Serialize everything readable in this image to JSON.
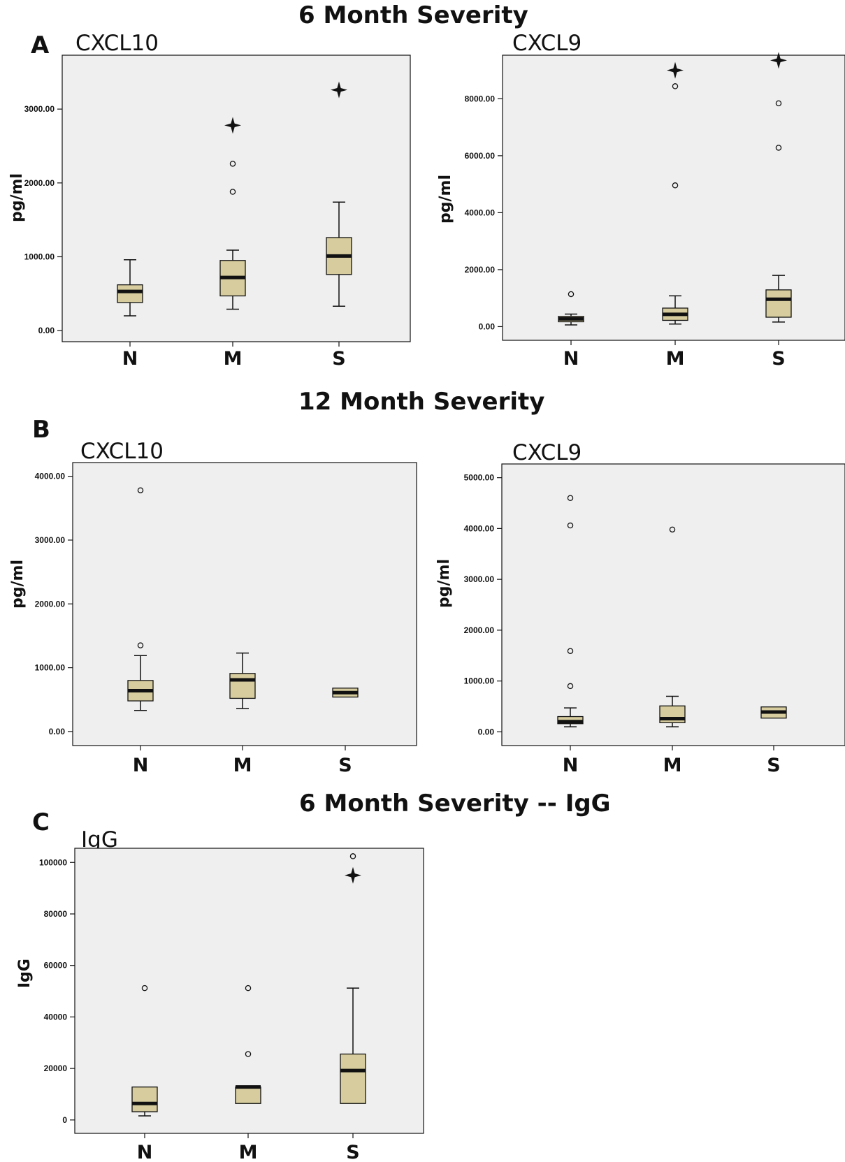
{
  "titles": {
    "six_month": "6 Month Severity",
    "twelve_month": "12 Month Severity",
    "six_month_igg": "6 Month Severity -- IgG"
  },
  "panels": {
    "a": "A",
    "b": "B",
    "c": "C"
  },
  "colors": {
    "box_fill": "#d6cc9d",
    "plot_bg": "#efefef",
    "line": "#111111"
  },
  "chart_data": [
    {
      "id": "a-cxcl10",
      "type": "box",
      "title": "CXCL10",
      "ylabel": "pg/ml",
      "categories": [
        "N",
        "M",
        "S"
      ],
      "ylim": [
        -150,
        3730
      ],
      "yticks": [
        0,
        1000,
        2000,
        3000
      ],
      "ytick_labels": [
        "0.00",
        "1000.00",
        "2000.00",
        "3000.00"
      ],
      "boxes": [
        {
          "category": "N",
          "whisker_low": 200,
          "q1": 380,
          "median": 530,
          "q3": 620,
          "whisker_high": 960,
          "outliers": [],
          "extremes": []
        },
        {
          "category": "M",
          "whisker_low": 290,
          "q1": 470,
          "median": 720,
          "q3": 950,
          "whisker_high": 1090,
          "outliers": [
            1880,
            2260
          ],
          "extremes": [
            2780
          ]
        },
        {
          "category": "S",
          "whisker_low": 330,
          "q1": 760,
          "median": 1010,
          "q3": 1260,
          "whisker_high": 1740,
          "outliers": [],
          "extremes": [
            3260
          ]
        }
      ]
    },
    {
      "id": "a-cxcl9",
      "type": "box",
      "title": "CXCL9",
      "ylabel": "pg/ml",
      "categories": [
        "N",
        "M",
        "S"
      ],
      "ylim": [
        -480,
        9530
      ],
      "yticks": [
        0,
        2000,
        4000,
        6000,
        8000
      ],
      "ytick_labels": [
        "0.00",
        "2000.00",
        "4000.00",
        "6000.00",
        "8000.00"
      ],
      "boxes": [
        {
          "category": "N",
          "whisker_low": 60,
          "q1": 170,
          "median": 270,
          "q3": 360,
          "whisker_high": 440,
          "outliers": [
            1140
          ],
          "extremes": []
        },
        {
          "category": "M",
          "whisker_low": 90,
          "q1": 220,
          "median": 430,
          "q3": 650,
          "whisker_high": 1080,
          "outliers": [
            4960,
            8440
          ],
          "extremes": [
            9000
          ]
        },
        {
          "category": "S",
          "whisker_low": 160,
          "q1": 330,
          "median": 960,
          "q3": 1290,
          "whisker_high": 1800,
          "outliers": [
            6280,
            7840
          ],
          "extremes": [
            9350
          ]
        }
      ]
    },
    {
      "id": "b-cxcl10",
      "type": "box",
      "title": "CXCL10",
      "ylabel": "pg/ml",
      "categories": [
        "N",
        "M",
        "S"
      ],
      "ylim": [
        -220,
        4215
      ],
      "yticks": [
        0,
        1000,
        2000,
        3000,
        4000
      ],
      "ytick_labels": [
        "0.00",
        "1000.00",
        "2000.00",
        "3000.00",
        "4000.00"
      ],
      "boxes": [
        {
          "category": "N",
          "whisker_low": 330,
          "q1": 480,
          "median": 640,
          "q3": 800,
          "whisker_high": 1190,
          "outliers": [
            1350,
            3780
          ],
          "extremes": []
        },
        {
          "category": "M",
          "whisker_low": 360,
          "q1": 520,
          "median": 810,
          "q3": 910,
          "whisker_high": 1230,
          "outliers": [],
          "extremes": []
        },
        {
          "category": "S",
          "whisker_low": 540,
          "q1": 540,
          "median": 610,
          "q3": 680,
          "whisker_high": 680,
          "outliers": [],
          "extremes": []
        }
      ]
    },
    {
      "id": "b-cxcl9",
      "type": "box",
      "title": "CXCL9",
      "ylabel": "pg/ml",
      "categories": [
        "N",
        "M",
        "S"
      ],
      "ylim": [
        -270,
        5270
      ],
      "yticks": [
        0,
        1000,
        2000,
        3000,
        4000,
        5000
      ],
      "ytick_labels": [
        "0.00",
        "1000.00",
        "2000.00",
        "3000.00",
        "4000.00",
        "5000.00"
      ],
      "boxes": [
        {
          "category": "N",
          "whisker_low": 100,
          "q1": 160,
          "median": 200,
          "q3": 300,
          "whisker_high": 470,
          "outliers": [
            900,
            1590,
            4060,
            4600
          ],
          "extremes": []
        },
        {
          "category": "M",
          "whisker_low": 100,
          "q1": 180,
          "median": 260,
          "q3": 510,
          "whisker_high": 700,
          "outliers": [
            3980
          ],
          "extremes": []
        },
        {
          "category": "S",
          "whisker_low": 270,
          "q1": 270,
          "median": 390,
          "q3": 490,
          "whisker_high": 490,
          "outliers": [],
          "extremes": []
        }
      ]
    },
    {
      "id": "c-igg",
      "type": "box",
      "title": "IgG",
      "ylabel": "IgG",
      "categories": [
        "N",
        "M",
        "S"
      ],
      "ylim": [
        -5200,
        105500
      ],
      "yticks": [
        0,
        20000,
        40000,
        60000,
        80000,
        100000
      ],
      "ytick_labels": [
        "0",
        "20000",
        "40000",
        "60000",
        "80000",
        "100000"
      ],
      "boxes": [
        {
          "category": "N",
          "whisker_low": 1600,
          "q1": 3200,
          "median": 6400,
          "q3": 12800,
          "whisker_high": 12800,
          "outliers": [
            51200
          ],
          "extremes": []
        },
        {
          "category": "M",
          "whisker_low": 6400,
          "q1": 6400,
          "median": 12800,
          "q3": 12800,
          "whisker_high": 12800,
          "outliers": [
            25600,
            51200
          ],
          "extremes": []
        },
        {
          "category": "S",
          "whisker_low": 6400,
          "q1": 6400,
          "median": 19200,
          "q3": 25600,
          "whisker_high": 51200,
          "outliers": [
            102400
          ],
          "extremes": [
            95000
          ]
        }
      ]
    }
  ]
}
